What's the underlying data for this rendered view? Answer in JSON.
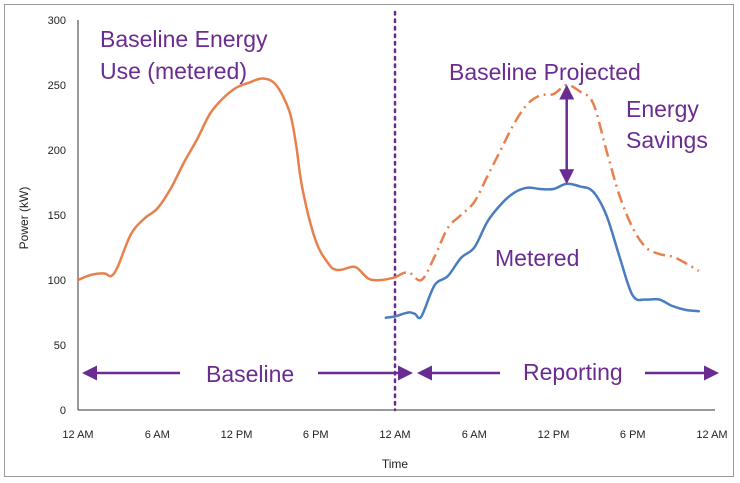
{
  "chart_data": {
    "type": "line",
    "xlabel": "Time",
    "ylabel": "Power (kW)",
    "ylim": [
      0,
      300
    ],
    "yticks": [
      0,
      50,
      100,
      150,
      200,
      250,
      300
    ],
    "xlim": [
      0,
      48
    ],
    "xticks": [
      {
        "value": 0,
        "label": "12 AM"
      },
      {
        "value": 6,
        "label": "6 AM"
      },
      {
        "value": 12,
        "label": "12 PM"
      },
      {
        "value": 18,
        "label": "6 PM"
      },
      {
        "value": 24,
        "label": "12 AM"
      },
      {
        "value": 30,
        "label": "6 AM"
      },
      {
        "value": 36,
        "label": "12 PM"
      },
      {
        "value": 42,
        "label": "6 PM"
      },
      {
        "value": 48,
        "label": "12 AM"
      }
    ],
    "grid": false,
    "divider_x": 24,
    "colors": {
      "baseline": "#e8804d",
      "metered": "#4a7cc0",
      "annotation": "#6a2c91"
    },
    "series": [
      {
        "id": "baseline",
        "x": [
          0,
          1,
          2,
          2.5,
          3,
          4,
          5,
          6,
          7,
          8,
          9,
          10,
          11,
          12,
          13,
          14,
          15,
          16,
          16.5,
          17,
          18,
          19,
          19.5,
          20,
          21,
          22,
          23,
          24
        ],
        "y": [
          100,
          104,
          105,
          103,
          110,
          135,
          147,
          155,
          170,
          190,
          208,
          228,
          240,
          248,
          252,
          255,
          250,
          230,
          205,
          170,
          130,
          112,
          108,
          108,
          110,
          101,
          100,
          102
        ]
      },
      {
        "id": "projected",
        "x": [
          24,
          25,
          26,
          27,
          28,
          29,
          30,
          31,
          32,
          33,
          34,
          35,
          36,
          37,
          38,
          39,
          40,
          41,
          42,
          43,
          44,
          45,
          46,
          47
        ],
        "y": [
          102,
          106,
          100,
          118,
          140,
          150,
          160,
          180,
          200,
          220,
          235,
          242,
          243,
          250,
          245,
          236,
          200,
          165,
          140,
          125,
          120,
          118,
          113,
          107
        ]
      },
      {
        "id": "metered",
        "x": [
          23.3,
          24,
          25,
          25.5,
          26,
          27,
          28,
          29,
          30,
          31,
          32,
          33,
          34,
          35,
          36,
          37,
          38,
          39,
          40,
          41,
          42,
          43,
          44,
          45,
          46,
          47
        ],
        "y": [
          71,
          72,
          75,
          74,
          72,
          96,
          103,
          117,
          125,
          145,
          158,
          167,
          171,
          170,
          170,
          174,
          172,
          168,
          150,
          118,
          88,
          85,
          85,
          80,
          77,
          76
        ]
      }
    ],
    "annotations": {
      "baseline_energy_line1": "Baseline Energy",
      "baseline_energy_line2": "Use (metered)",
      "baseline_projected": "Baseline Projected",
      "energy_line1": "Energy",
      "savings_line2": "Savings",
      "metered": "Metered",
      "baseline_period": "Baseline",
      "reporting_period": "Reporting"
    }
  }
}
